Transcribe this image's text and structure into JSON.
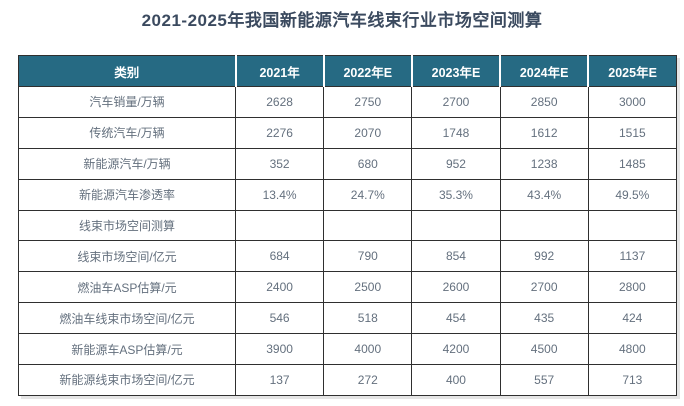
{
  "title": "2021-2025年我国新能源汽车线束行业市场空间测算",
  "table": {
    "columns": [
      "类别",
      "2021年",
      "2022年E",
      "2023年E",
      "2024年E",
      "2025年E"
    ],
    "rows": [
      {
        "label": "汽车销量/万辆",
        "values": [
          "2628",
          "2750",
          "2700",
          "2850",
          "3000"
        ]
      },
      {
        "label": "传统汽车/万辆",
        "values": [
          "2276",
          "2070",
          "1748",
          "1612",
          "1515"
        ]
      },
      {
        "label": "新能源汽车/万辆",
        "values": [
          "352",
          "680",
          "952",
          "1238",
          "1485"
        ]
      },
      {
        "label": "新能源汽车渗透率",
        "values": [
          "13.4%",
          "24.7%",
          "35.3%",
          "43.4%",
          "49.5%"
        ]
      },
      {
        "label": "线束市场空间测算",
        "values": [
          "",
          "",
          "",
          "",
          ""
        ]
      },
      {
        "label": "线束市场空间/亿元",
        "values": [
          "684",
          "790",
          "854",
          "992",
          "1137"
        ]
      },
      {
        "label": "燃油车ASP估算/元",
        "values": [
          "2400",
          "2500",
          "2600",
          "2700",
          "2800"
        ]
      },
      {
        "label": "燃油车线束市场空间/亿元",
        "values": [
          "546",
          "518",
          "454",
          "435",
          "424"
        ]
      },
      {
        "label": "新能源车ASP估算/元",
        "values": [
          "3900",
          "4000",
          "4200",
          "4500",
          "4800"
        ]
      },
      {
        "label": "新能源线束市场空间/亿元",
        "values": [
          "137",
          "272",
          "400",
          "557",
          "713"
        ]
      }
    ]
  },
  "colors": {
    "header_bg": "#266a83",
    "header_text": "#ffffff",
    "title_text": "#3b4a5f",
    "cell_text": "#64707e",
    "border": "#2f2f2f"
  },
  "chart_data": {
    "type": "table",
    "title": "2021-2025年我国新能源汽车线束行业市场空间测算",
    "categories": [
      "2021年",
      "2022年E",
      "2023年E",
      "2024年E",
      "2025年E"
    ],
    "series": [
      {
        "name": "汽车销量/万辆",
        "values": [
          2628,
          2750,
          2700,
          2850,
          3000
        ]
      },
      {
        "name": "传统汽车/万辆",
        "values": [
          2276,
          2070,
          1748,
          1612,
          1515
        ]
      },
      {
        "name": "新能源汽车/万辆",
        "values": [
          352,
          680,
          952,
          1238,
          1485
        ]
      },
      {
        "name": "新能源汽车渗透率",
        "values": [
          "13.4%",
          "24.7%",
          "35.3%",
          "43.4%",
          "49.5%"
        ]
      },
      {
        "name": "线束市场空间测算",
        "values": [
          null,
          null,
          null,
          null,
          null
        ]
      },
      {
        "name": "线束市场空间/亿元",
        "values": [
          684,
          790,
          854,
          992,
          1137
        ]
      },
      {
        "name": "燃油车ASP估算/元",
        "values": [
          2400,
          2500,
          2600,
          2700,
          2800
        ]
      },
      {
        "name": "燃油车线束市场空间/亿元",
        "values": [
          546,
          518,
          454,
          435,
          424
        ]
      },
      {
        "name": "新能源车ASP估算/元",
        "values": [
          3900,
          4000,
          4200,
          4500,
          4800
        ]
      },
      {
        "name": "新能源线束市场空间/亿元",
        "values": [
          137,
          272,
          400,
          557,
          713
        ]
      }
    ],
    "layout": {
      "header_position": "top-row",
      "grid": true,
      "legend": "none"
    }
  }
}
